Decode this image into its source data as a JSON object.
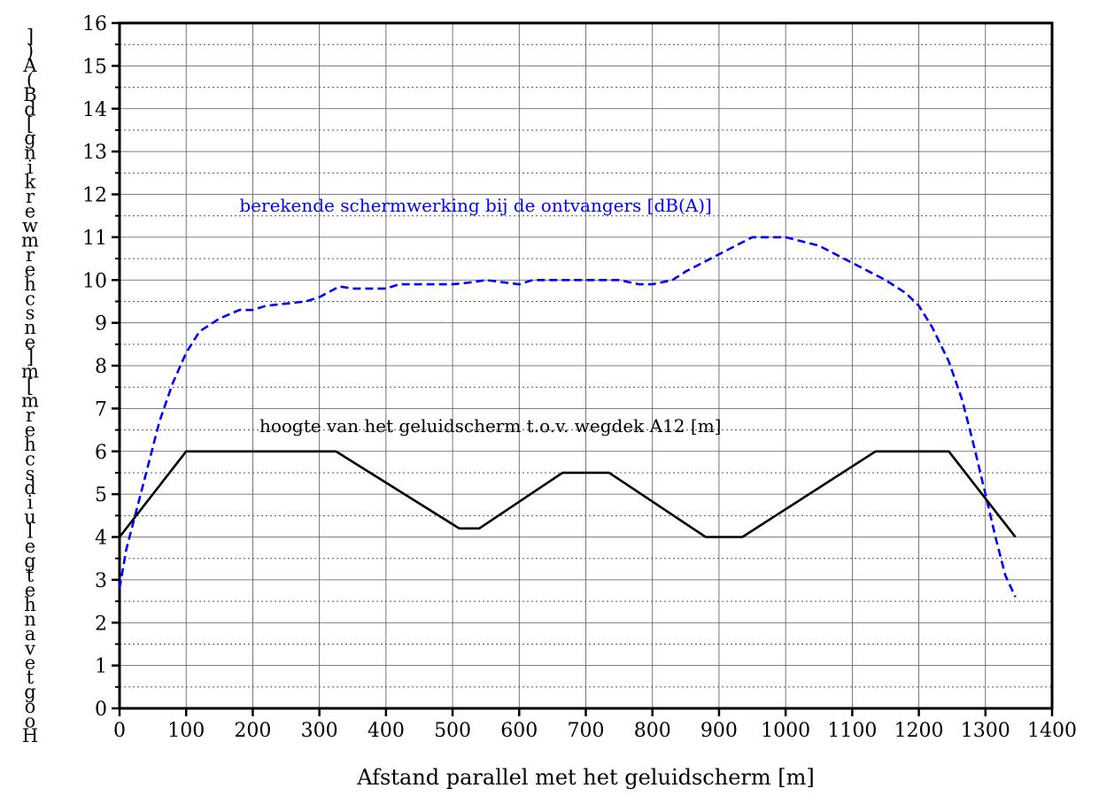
{
  "chart_data": {
    "type": "line",
    "xlabel": "Afstand parallel met het geluidscherm [m]",
    "ylabel": "Hoogte van het geluidscherm [m] en schermwerking [dB(A)]",
    "xlim": [
      0,
      1400
    ],
    "ylim": [
      0,
      16
    ],
    "x_ticks": [
      0,
      100,
      200,
      300,
      400,
      500,
      600,
      700,
      800,
      900,
      1000,
      1100,
      1200,
      1300,
      1400
    ],
    "y_ticks": [
      0,
      1,
      2,
      3,
      4,
      5,
      6,
      7,
      8,
      9,
      10,
      11,
      12,
      13,
      14,
      15,
      16
    ],
    "grid": true,
    "series": [
      {
        "name": "berekende schermwerking bij de ontvangers [dB(A)]",
        "color": "#0000ff",
        "style": "dashed",
        "x": [
          0,
          10,
          25,
          40,
          60,
          80,
          100,
          120,
          150,
          180,
          200,
          220,
          250,
          280,
          300,
          330,
          350,
          400,
          420,
          450,
          500,
          530,
          550,
          600,
          620,
          650,
          700,
          750,
          780,
          800,
          830,
          850,
          900,
          950,
          1000,
          1050,
          1100,
          1150,
          1180,
          1200,
          1220,
          1245,
          1265,
          1280,
          1300,
          1315,
          1330,
          1345
        ],
        "y": [
          2.8,
          3.7,
          4.6,
          5.5,
          6.7,
          7.6,
          8.3,
          8.8,
          9.1,
          9.3,
          9.3,
          9.4,
          9.45,
          9.5,
          9.6,
          9.85,
          9.8,
          9.8,
          9.9,
          9.9,
          9.9,
          9.95,
          10.0,
          9.9,
          10.0,
          10.0,
          10.0,
          10.0,
          9.9,
          9.9,
          10.0,
          10.2,
          10.6,
          11.0,
          11.0,
          10.8,
          10.4,
          10.0,
          9.7,
          9.4,
          8.9,
          8.1,
          7.2,
          6.3,
          5.0,
          4.0,
          3.1,
          2.6
        ]
      },
      {
        "name": "hoogte van het geluidscherm t.o.v. wegdek A12 [m]",
        "color": "#000000",
        "style": "solid",
        "x": [
          0,
          100,
          325,
          510,
          540,
          665,
          735,
          880,
          935,
          1135,
          1245,
          1345
        ],
        "y": [
          4.0,
          6.0,
          6.0,
          4.2,
          4.2,
          5.5,
          5.5,
          4.0,
          4.0,
          6.0,
          6.0,
          4.0
        ]
      }
    ],
    "annotations": [
      {
        "text": "berekende schermwerking bij de ontvangers [dB(A)]",
        "x": 180,
        "y": 11.6,
        "color": "#0000ff"
      },
      {
        "text": "hoogte van het geluidscherm t.o.v. wegdek A12 [m]",
        "x": 210,
        "y": 6.45,
        "color": "#000000"
      }
    ]
  }
}
